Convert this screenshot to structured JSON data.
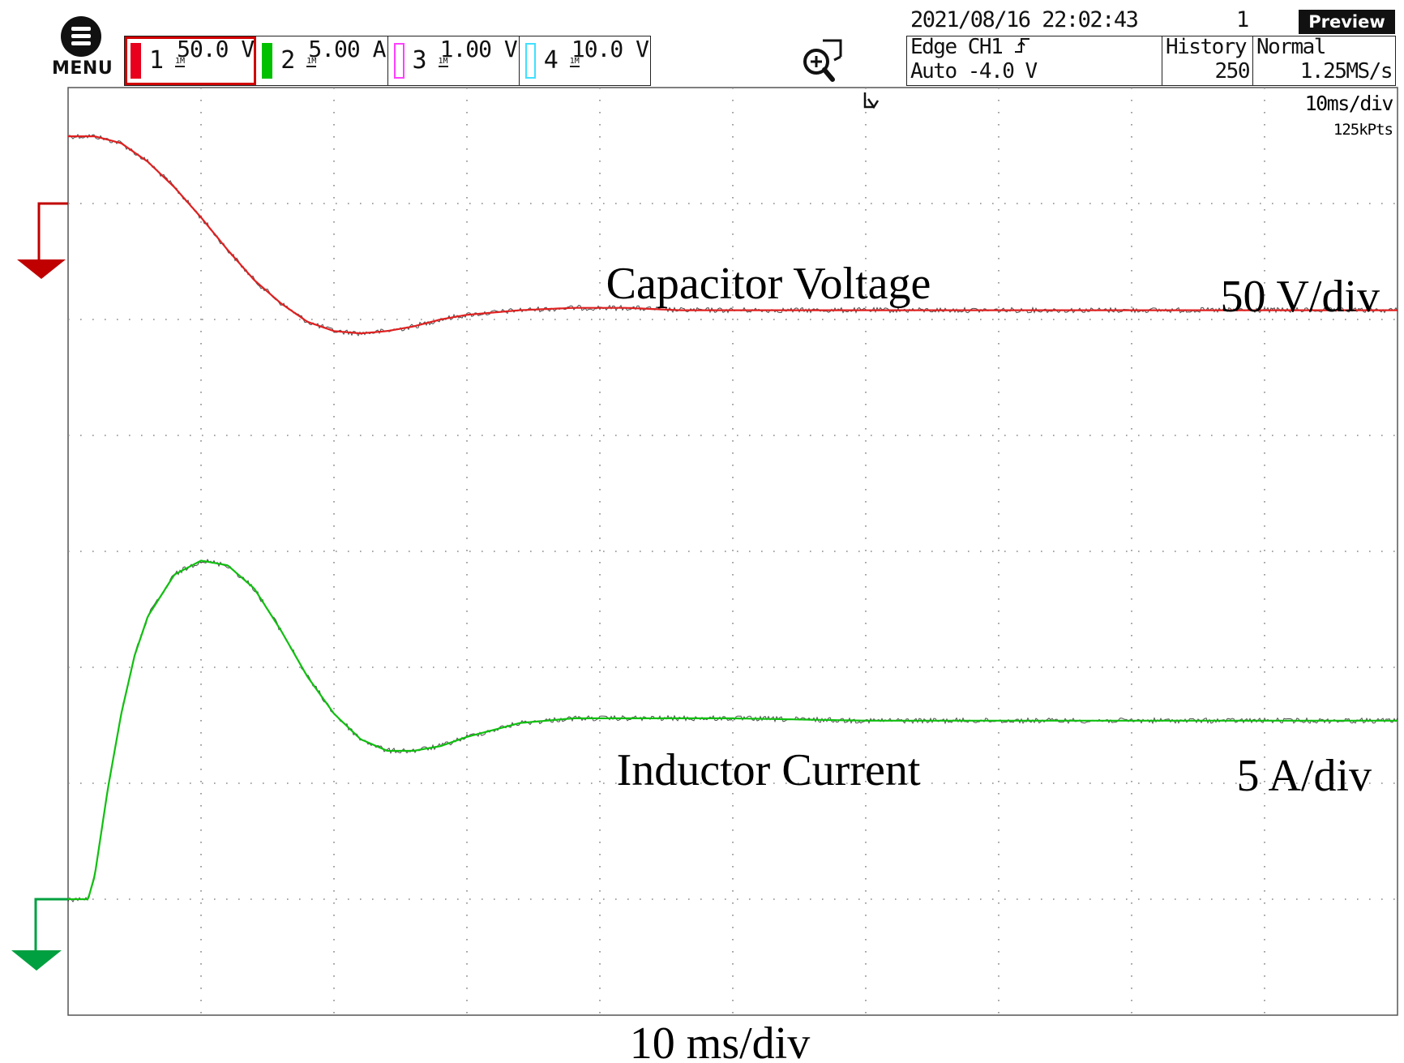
{
  "header": {
    "menu_label": "MENU",
    "timestamp": "2021/08/16 22:02:43",
    "sequence_number": "1",
    "preview_label": "Preview"
  },
  "channels": [
    {
      "number": "1",
      "scale": "50.0 V",
      "coupling_label": "1M",
      "color": "#e8001c",
      "swatch": "filled",
      "active": true
    },
    {
      "number": "2",
      "scale": "5.00 A",
      "coupling_label": "1M",
      "color": "#00c000",
      "swatch": "filled",
      "active": false
    },
    {
      "number": "3",
      "scale": "1.00 V",
      "coupling_label": "1M",
      "color": "#ff40ff",
      "swatch": "outline",
      "active": false
    },
    {
      "number": "4",
      "scale": "10.0 V",
      "coupling_label": "1M",
      "color": "#40e0ff",
      "swatch": "outline",
      "active": false
    }
  ],
  "trigger": {
    "line1": "Edge CH1",
    "line2": "Auto -4.0 V"
  },
  "history": {
    "label": "History",
    "value": "250"
  },
  "acquisition": {
    "mode": "Normal",
    "sample_rate": "1.25MS/s"
  },
  "timebase": {
    "scale": "10ms/div",
    "points": "125kPts"
  },
  "colors": {
    "ch1_trace": "#e02020",
    "ch2_trace": "#10c010",
    "ch1_marker": "#c00000",
    "ch2_marker": "#00a040",
    "grid": "#888888",
    "noise_dark": "#111111"
  },
  "chart_data": {
    "type": "line",
    "title": "",
    "xlabel": "10 ms/div",
    "ylabel": "",
    "x_unit": "ms",
    "xlim": [
      0,
      100
    ],
    "x_divisions": 10,
    "y_divisions": 8,
    "grid": true,
    "series": [
      {
        "name": "Capacitor Voltage",
        "label_text": "Capacitor Voltage",
        "scale_text": "50 V/div",
        "channel": 1,
        "unit": "V",
        "volts_per_div": 50,
        "x": [
          0,
          2,
          4,
          6,
          8,
          10,
          12,
          14,
          16,
          18,
          20,
          22,
          24,
          26,
          28,
          30,
          34,
          38,
          42,
          46,
          50,
          60,
          70,
          80,
          90,
          100
        ],
        "y": [
          29,
          29,
          26,
          18,
          7,
          -6,
          -20,
          -33,
          -43,
          -51,
          -55,
          -56,
          -55,
          -53,
          -50,
          -48,
          -46,
          -45,
          -45,
          -46,
          -46,
          -46,
          -46,
          -46,
          -46,
          -46
        ]
      },
      {
        "name": "Inductor Current",
        "label_text": "Inductor Current",
        "scale_text": "5 A/div",
        "channel": 2,
        "unit": "A",
        "amps_per_div": 5,
        "x": [
          0,
          1.5,
          2,
          3,
          4,
          5,
          6,
          8,
          10,
          12,
          14,
          16,
          18,
          20,
          22,
          24,
          26,
          28,
          30,
          34,
          38,
          42,
          46,
          50,
          60,
          70,
          80,
          90,
          100
        ],
        "y": [
          0,
          0,
          1.0,
          4.8,
          8.0,
          10.5,
          12.2,
          14.0,
          14.6,
          14.4,
          13.4,
          11.6,
          9.6,
          8.0,
          6.9,
          6.4,
          6.4,
          6.6,
          7.0,
          7.6,
          7.8,
          7.8,
          7.8,
          7.8,
          7.7,
          7.7,
          7.7,
          7.7,
          7.7
        ]
      }
    ]
  }
}
